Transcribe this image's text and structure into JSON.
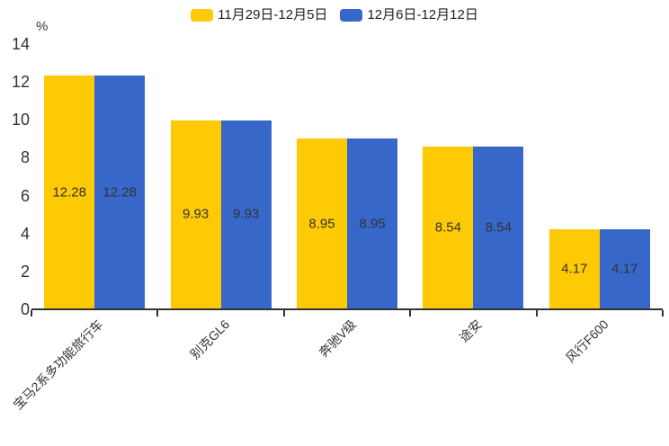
{
  "chart_data": {
    "type": "bar",
    "title": "",
    "categories": [
      "宝马2系多功能旅行车",
      "别克GL6",
      "奔驰V级",
      "途安",
      "风行F600"
    ],
    "series": [
      {
        "name": "11月29日-12月5日",
        "color": "#FEC905",
        "values": [
          12.28,
          9.93,
          8.95,
          8.54,
          4.17
        ]
      },
      {
        "name": "12月6日-12月12日",
        "color": "#3767C9",
        "values": [
          12.28,
          9.93,
          8.95,
          8.54,
          4.17
        ]
      }
    ],
    "xlabel": "",
    "ylabel": "%",
    "ylim": [
      0,
      14
    ],
    "yticks": [
      0,
      2,
      4,
      6,
      8,
      10,
      12,
      14
    ],
    "legend_position": "top",
    "grid": false,
    "value_labels_visible": true,
    "value_label_color": "#333333",
    "axis_color": "#333333",
    "tick_label_color": "#333333"
  }
}
